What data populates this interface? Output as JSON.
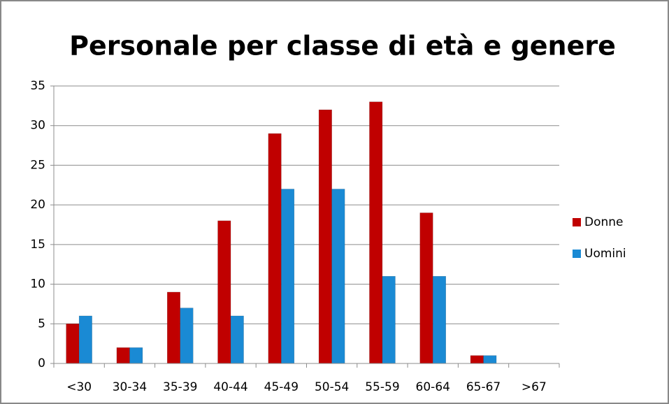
{
  "chart_data": {
    "type": "bar",
    "title": "Personale per classe di età e genere",
    "categories": [
      "<30",
      "30-34",
      "35-39",
      "40-44",
      "45-49",
      "50-54",
      "55-59",
      "60-64",
      "65-67",
      ">67"
    ],
    "series": [
      {
        "name": "Donne",
        "color": "#c00000",
        "values": [
          5,
          2,
          9,
          18,
          29,
          32,
          33,
          19,
          1,
          0
        ]
      },
      {
        "name": "Uomini",
        "color": "#1a8ad4",
        "values": [
          6,
          2,
          7,
          6,
          22,
          22,
          11,
          11,
          1,
          0
        ]
      }
    ],
    "ylim": [
      0,
      35
    ],
    "yticks": [
      0,
      5,
      10,
      15,
      20,
      25,
      30,
      35
    ],
    "grid": true,
    "legend": "right"
  }
}
